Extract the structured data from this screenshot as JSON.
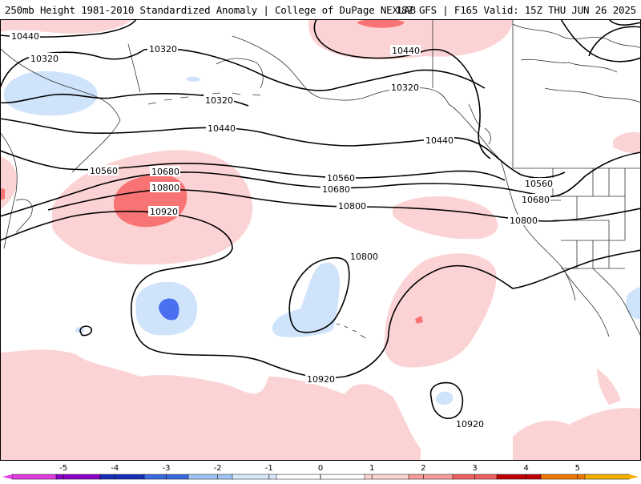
{
  "header": {
    "title_left": "250mb Height 1981-2010 Standardized Anomaly | College of DuPage NEXLAB",
    "title_right": "18Z GFS | F165 Valid: 15Z THU JUN 26 2025"
  },
  "colors": {
    "anom_pos_1": "#fcd3d5",
    "anom_pos_2": "#f87373",
    "anom_neg_1": "#cfe3fb",
    "anom_neg_2": "#4a6ff0",
    "contour": "#000000",
    "coast": "#333333"
  },
  "contour_labels": [
    "10440",
    "10320",
    "10320",
    "10440",
    "10320",
    "10320",
    "10440",
    "10440",
    "10560",
    "10680",
    "10800",
    "10920",
    "10560",
    "10680",
    "10800",
    "10560",
    "10680",
    "10800",
    "10800",
    "10920",
    "10920"
  ],
  "colorbar": {
    "ticks": [
      "-5",
      "-4",
      "-3",
      "-2",
      "-1",
      "0",
      "1",
      "2",
      "3",
      "4",
      "5"
    ],
    "colors": [
      "#e03de0",
      "#8a00c8",
      "#1530b8",
      "#3b6ae0",
      "#9fc3f5",
      "#d7e8fb",
      "#ffffff",
      "#ffffff",
      "#fcd3d5",
      "#f99b9b",
      "#f06060",
      "#c00000",
      "#f07800",
      "#f4b000"
    ]
  }
}
